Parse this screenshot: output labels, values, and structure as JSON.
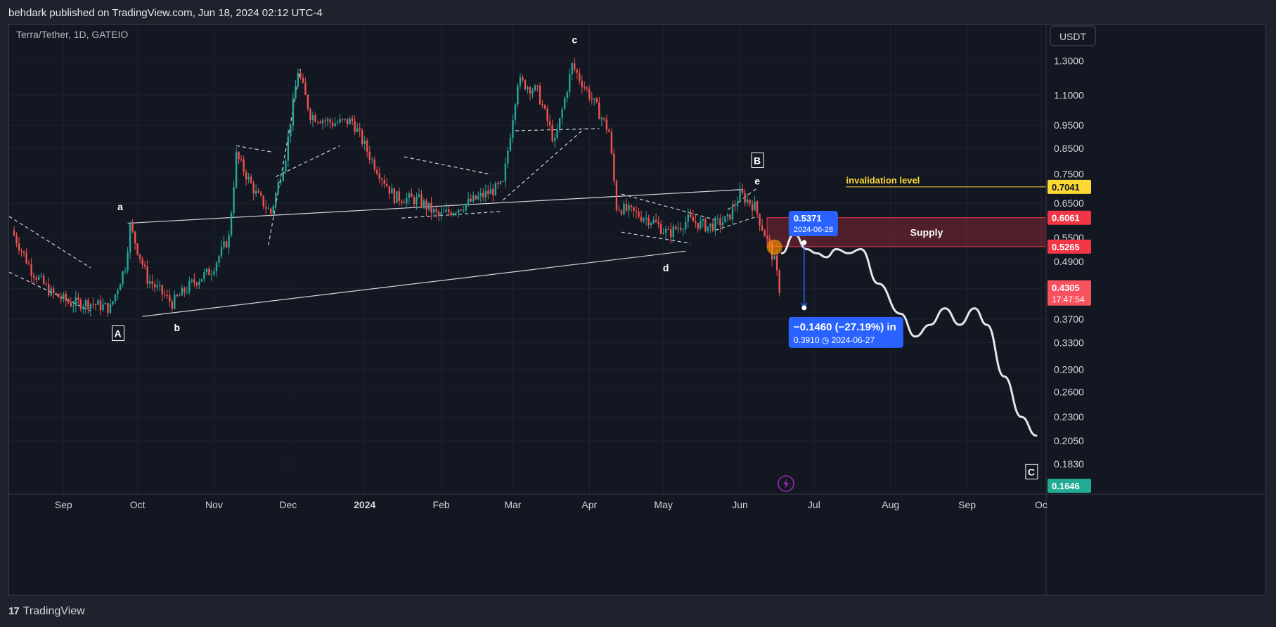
{
  "header": {
    "publisher_line": "behdark published on TradingView.com, Jun 18, 2024 02:12 UTC-4"
  },
  "footer": {
    "brand": "TradingView"
  },
  "chart_data": {
    "type": "candlestick",
    "symbol_line": "Terra/Tether, 1D, GATEIO",
    "currency": "USDT",
    "x_axis_labels": [
      "Sep",
      "Oct",
      "Nov",
      "Dec",
      "2024",
      "Feb",
      "Mar",
      "Apr",
      "May",
      "Jun",
      "Jul",
      "Aug",
      "Sep",
      "Oc"
    ],
    "y_axis_labels": [
      "1.3000",
      "1.1000",
      "0.9500",
      "0.8500",
      "0.7500",
      "0.6500",
      "0.5500",
      "0.4900",
      "0.4300",
      "0.3700",
      "0.3300",
      "0.2900",
      "0.2600",
      "0.2300",
      "0.2050",
      "0.1830"
    ],
    "y_scale": "log",
    "y_range": [
      0.158,
      1.55
    ],
    "price_labels": [
      {
        "value": "0.7041",
        "color": "#fdd835",
        "text_color": "#131722"
      },
      {
        "value": "0.6061",
        "color": "#f23645",
        "text_color": "#ffffff"
      },
      {
        "value": "0.5265",
        "color": "#f23645",
        "text_color": "#ffffff"
      },
      {
        "value": "0.4305",
        "color": "#f7525f",
        "text_color": "#ffffff",
        "sub": "17:47:54"
      },
      {
        "value": "0.1646",
        "color": "#22ab94",
        "text_color": "#ffffff"
      }
    ],
    "wave_labels": [
      {
        "label": "A",
        "boxed": true
      },
      {
        "label": "B",
        "boxed": true
      },
      {
        "label": "C",
        "boxed": true
      },
      {
        "label": "a",
        "boxed": false
      },
      {
        "label": "b",
        "boxed": false
      },
      {
        "label": "c",
        "boxed": false
      },
      {
        "label": "d",
        "boxed": false
      },
      {
        "label": "e",
        "boxed": false
      }
    ],
    "annotations": {
      "invalidation_label": "invalidation level",
      "invalidation_price": 0.7041,
      "supply_label": "Supply",
      "supply_zone": [
        0.5265,
        0.6061
      ],
      "measure_top_price": "0.5371",
      "measure_top_date": "2024-06-28",
      "measure_change": "−0.1460 (−27.19%) in",
      "measure_bottom_price": "0.3910",
      "measure_bottom_date": "2024-06-27"
    },
    "price_path": [
      [
        "2023-08-12",
        0.57
      ],
      [
        "2023-08-20",
        0.47
      ],
      [
        "2023-08-28",
        0.42
      ],
      [
        "2023-09-05",
        0.4
      ],
      [
        "2023-09-13",
        0.4
      ],
      [
        "2023-09-21",
        0.39
      ],
      [
        "2023-09-27",
        0.48
      ],
      [
        "2023-09-29",
        0.58
      ],
      [
        "2023-10-06",
        0.45
      ],
      [
        "2023-10-16",
        0.4
      ],
      [
        "2023-10-24",
        0.44
      ],
      [
        "2023-11-01",
        0.47
      ],
      [
        "2023-11-08",
        0.55
      ],
      [
        "2023-11-11",
        0.82
      ],
      [
        "2023-11-19",
        0.68
      ],
      [
        "2023-11-25",
        0.62
      ],
      [
        "2023-12-01",
        0.82
      ],
      [
        "2023-12-06",
        1.24
      ],
      [
        "2023-12-11",
        1.0
      ],
      [
        "2023-12-20",
        0.96
      ],
      [
        "2023-12-28",
        0.97
      ],
      [
        "2024-01-05",
        0.8
      ],
      [
        "2024-01-14",
        0.67
      ],
      [
        "2024-01-24",
        0.66
      ],
      [
        "2024-02-01",
        0.61
      ],
      [
        "2024-02-10",
        0.64
      ],
      [
        "2024-02-20",
        0.68
      ],
      [
        "2024-02-27",
        0.71
      ],
      [
        "2024-03-04",
        1.18
      ],
      [
        "2024-03-12",
        1.12
      ],
      [
        "2024-03-19",
        0.87
      ],
      [
        "2024-03-26",
        1.27
      ],
      [
        "2024-04-03",
        1.08
      ],
      [
        "2024-04-10",
        0.92
      ],
      [
        "2024-04-13",
        0.64
      ],
      [
        "2024-04-20",
        0.62
      ],
      [
        "2024-04-27",
        0.6
      ],
      [
        "2024-05-04",
        0.56
      ],
      [
        "2024-05-12",
        0.6
      ],
      [
        "2024-05-20",
        0.58
      ],
      [
        "2024-05-28",
        0.6
      ],
      [
        "2024-06-02",
        0.68
      ],
      [
        "2024-06-08",
        0.64
      ],
      [
        "2024-06-12",
        0.56
      ],
      [
        "2024-06-16",
        0.49
      ],
      [
        "2024-06-18",
        0.43
      ]
    ],
    "projection_path": [
      [
        "2024-06-18",
        0.51
      ],
      [
        "2024-06-23",
        0.56
      ],
      [
        "2024-06-28",
        0.52
      ],
      [
        "2024-07-02",
        0.51
      ],
      [
        "2024-07-06",
        0.5
      ],
      [
        "2024-07-10",
        0.52
      ],
      [
        "2024-07-15",
        0.51
      ],
      [
        "2024-07-20",
        0.52
      ],
      [
        "2024-07-27",
        0.44
      ],
      [
        "2024-08-05",
        0.38
      ],
      [
        "2024-08-11",
        0.34
      ],
      [
        "2024-08-17",
        0.36
      ],
      [
        "2024-08-23",
        0.39
      ],
      [
        "2024-08-29",
        0.36
      ],
      [
        "2024-09-04",
        0.39
      ],
      [
        "2024-09-09",
        0.36
      ],
      [
        "2024-09-16",
        0.28
      ],
      [
        "2024-09-23",
        0.23
      ],
      [
        "2024-09-29",
        0.21
      ]
    ]
  }
}
